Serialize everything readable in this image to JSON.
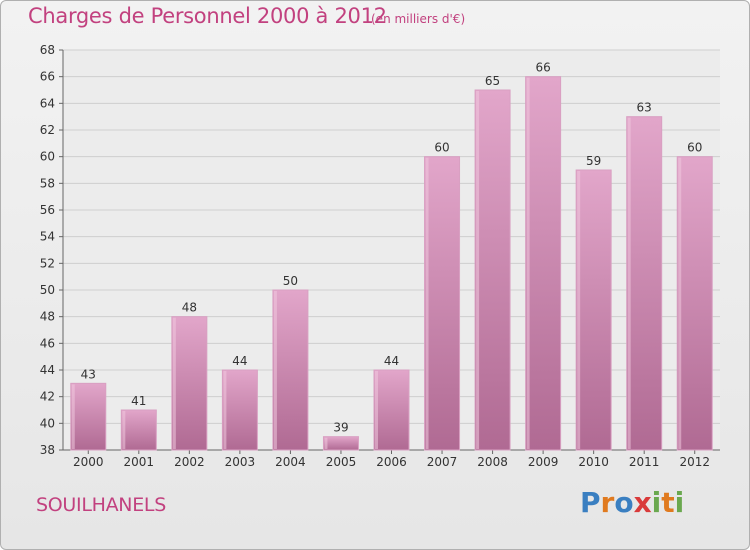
{
  "title": "Charges de Personnel 2000 à 2012",
  "subtitle": "(en milliers d'€)",
  "town": "SOUILHANELS",
  "logo": {
    "letters": [
      "P",
      "r",
      "o",
      "x",
      "i",
      "t",
      "i"
    ],
    "colors": [
      "#3a7fc1",
      "#e07a1f",
      "#3a7fc1",
      "#d93a3a",
      "#6aa84f",
      "#e07a1f",
      "#6aa84f"
    ]
  },
  "colors": {
    "bar_top": "#e2a6ca",
    "bar_bottom": "#b06a93",
    "text_accent": "#c2417f"
  },
  "chart_data": {
    "type": "bar",
    "title": "Charges de Personnel 2000 à 2012",
    "subtitle": "(en milliers d'€)",
    "categories": [
      "2000",
      "2001",
      "2002",
      "2003",
      "2004",
      "2005",
      "2006",
      "2007",
      "2008",
      "2009",
      "2010",
      "2011",
      "2012"
    ],
    "values": [
      43,
      41,
      48,
      44,
      50,
      39,
      44,
      60,
      65,
      66,
      59,
      63,
      60
    ],
    "ylim": [
      38,
      68
    ],
    "yticks": [
      38,
      40,
      42,
      44,
      46,
      48,
      50,
      52,
      54,
      56,
      58,
      60,
      62,
      64,
      66,
      68
    ],
    "grid": true,
    "xlabel": "",
    "ylabel": ""
  }
}
